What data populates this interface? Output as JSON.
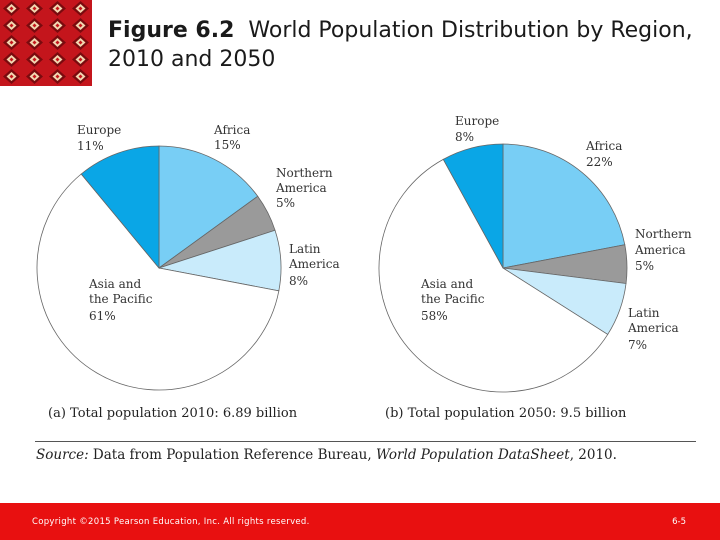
{
  "slide": {
    "title_bold": "Figure 6.2",
    "title_rest": "World Population Distribution by Region, 2010 and 2050",
    "source_prefix": "Source:",
    "source_text": "Data from Population Reference Bureau,",
    "source_italic": "World Population DataSheet",
    "source_suffix": ", 2010.",
    "copyright": "Copyright ©2015 Pearson Education, Inc. All rights reserved.",
    "page_number": "6-5"
  },
  "colors": {
    "footer": "#e81010",
    "europe": "#0aa6e6",
    "africa": "#78cef5",
    "northern_america": "#9a9a9a",
    "latin_america": "#c9ebfb",
    "asia_pacific": "#ffffff"
  },
  "chart_data": [
    {
      "type": "pie",
      "title": "(a) Total population 2010: 6.89 billion",
      "slices": [
        {
          "label": "Africa",
          "value": 15
        },
        {
          "label": "Northern America",
          "value": 5
        },
        {
          "label": "Latin America",
          "value": 8
        },
        {
          "label": "Asia and the Pacific",
          "value": 61
        },
        {
          "label": "Europe",
          "value": 11
        }
      ]
    },
    {
      "type": "pie",
      "title": "(b) Total population 2050: 9.5 billion",
      "slices": [
        {
          "label": "Africa",
          "value": 22
        },
        {
          "label": "Northern America",
          "value": 5
        },
        {
          "label": "Latin America",
          "value": 7
        },
        {
          "label": "Asia and the Pacific",
          "value": 58
        },
        {
          "label": "Europe",
          "value": 8
        }
      ]
    }
  ]
}
